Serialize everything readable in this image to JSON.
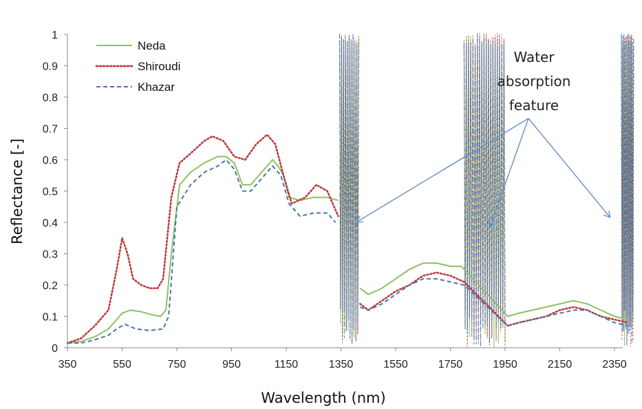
{
  "chart_data": {
    "type": "line",
    "title": "",
    "xlabel": "Wavelength (nm)",
    "ylabel": "Reflectance [-]",
    "xlim": [
      350,
      2500
    ],
    "ylim": [
      0,
      1
    ],
    "xticks": [
      "350",
      "550",
      "750",
      "950",
      "1150",
      "1350",
      "1550",
      "1750",
      "1950",
      "2150",
      "2350"
    ],
    "yticks": [
      "0",
      "0.1",
      "0.2",
      "0.3",
      "0.4",
      "0.5",
      "0.6",
      "0.7",
      "0.8",
      "0.9",
      "1"
    ],
    "grid": false,
    "legend_position": "top-left",
    "noise_bands_nm": [
      [
        1345,
        1415
      ],
      [
        1800,
        1950
      ],
      [
        2420,
        2500
      ]
    ],
    "annotation": {
      "lines": [
        "Water",
        "absorption",
        "feature"
      ],
      "points_to_nm": [
        1400,
        1950,
        2480
      ]
    },
    "series": [
      {
        "name": "Neda",
        "color": "#8dc063",
        "style": "solid",
        "points": [
          [
            350,
            0.015
          ],
          [
            400,
            0.02
          ],
          [
            450,
            0.035
          ],
          [
            500,
            0.06
          ],
          [
            530,
            0.09
          ],
          [
            550,
            0.11
          ],
          [
            580,
            0.12
          ],
          [
            620,
            0.115
          ],
          [
            660,
            0.105
          ],
          [
            690,
            0.1
          ],
          [
            710,
            0.12
          ],
          [
            730,
            0.3
          ],
          [
            760,
            0.52
          ],
          [
            800,
            0.56
          ],
          [
            850,
            0.59
          ],
          [
            900,
            0.61
          ],
          [
            930,
            0.61
          ],
          [
            960,
            0.59
          ],
          [
            990,
            0.52
          ],
          [
            1020,
            0.52
          ],
          [
            1060,
            0.56
          ],
          [
            1100,
            0.6
          ],
          [
            1120,
            0.58
          ],
          [
            1140,
            0.55
          ],
          [
            1160,
            0.48
          ],
          [
            1200,
            0.47
          ],
          [
            1250,
            0.48
          ],
          [
            1300,
            0.48
          ],
          [
            1340,
            0.47
          ],
          [
            1360,
            0.4
          ],
          [
            1420,
            0.19
          ],
          [
            1450,
            0.17
          ],
          [
            1500,
            0.19
          ],
          [
            1550,
            0.22
          ],
          [
            1600,
            0.25
          ],
          [
            1650,
            0.27
          ],
          [
            1700,
            0.27
          ],
          [
            1750,
            0.26
          ],
          [
            1790,
            0.26
          ],
          [
            1960,
            0.1
          ],
          [
            2000,
            0.11
          ],
          [
            2050,
            0.12
          ],
          [
            2100,
            0.13
          ],
          [
            2150,
            0.14
          ],
          [
            2200,
            0.15
          ],
          [
            2250,
            0.14
          ],
          [
            2300,
            0.12
          ],
          [
            2350,
            0.1
          ],
          [
            2400,
            0.09
          ],
          [
            2430,
            0.08
          ]
        ]
      },
      {
        "name": "Shiroudi",
        "color": "#c0393b",
        "style": "dotted",
        "points": [
          [
            350,
            0.015
          ],
          [
            400,
            0.03
          ],
          [
            450,
            0.07
          ],
          [
            500,
            0.12
          ],
          [
            530,
            0.25
          ],
          [
            550,
            0.35
          ],
          [
            570,
            0.3
          ],
          [
            590,
            0.22
          ],
          [
            620,
            0.2
          ],
          [
            650,
            0.19
          ],
          [
            680,
            0.19
          ],
          [
            700,
            0.22
          ],
          [
            730,
            0.48
          ],
          [
            760,
            0.59
          ],
          [
            800,
            0.62
          ],
          [
            850,
            0.66
          ],
          [
            880,
            0.675
          ],
          [
            920,
            0.66
          ],
          [
            960,
            0.61
          ],
          [
            1000,
            0.6
          ],
          [
            1040,
            0.65
          ],
          [
            1080,
            0.68
          ],
          [
            1110,
            0.65
          ],
          [
            1140,
            0.55
          ],
          [
            1170,
            0.46
          ],
          [
            1220,
            0.48
          ],
          [
            1260,
            0.52
          ],
          [
            1300,
            0.5
          ],
          [
            1340,
            0.42
          ],
          [
            1360,
            0.38
          ],
          [
            1420,
            0.14
          ],
          [
            1450,
            0.12
          ],
          [
            1500,
            0.15
          ],
          [
            1550,
            0.18
          ],
          [
            1600,
            0.2
          ],
          [
            1650,
            0.23
          ],
          [
            1700,
            0.24
          ],
          [
            1750,
            0.23
          ],
          [
            1800,
            0.21
          ],
          [
            1960,
            0.07
          ],
          [
            2000,
            0.08
          ],
          [
            2050,
            0.09
          ],
          [
            2100,
            0.1
          ],
          [
            2150,
            0.12
          ],
          [
            2200,
            0.13
          ],
          [
            2250,
            0.12
          ],
          [
            2300,
            0.1
          ],
          [
            2350,
            0.09
          ],
          [
            2400,
            0.08
          ],
          [
            2430,
            0.07
          ]
        ]
      },
      {
        "name": "Khazar",
        "color": "#4a73b0",
        "style": "dashed",
        "points": [
          [
            350,
            0.015
          ],
          [
            400,
            0.015
          ],
          [
            450,
            0.025
          ],
          [
            500,
            0.04
          ],
          [
            530,
            0.06
          ],
          [
            560,
            0.075
          ],
          [
            600,
            0.06
          ],
          [
            650,
            0.055
          ],
          [
            700,
            0.06
          ],
          [
            720,
            0.1
          ],
          [
            750,
            0.45
          ],
          [
            800,
            0.52
          ],
          [
            850,
            0.56
          ],
          [
            900,
            0.58
          ],
          [
            930,
            0.6
          ],
          [
            960,
            0.57
          ],
          [
            990,
            0.5
          ],
          [
            1020,
            0.5
          ],
          [
            1060,
            0.54
          ],
          [
            1100,
            0.58
          ],
          [
            1130,
            0.55
          ],
          [
            1160,
            0.46
          ],
          [
            1200,
            0.42
          ],
          [
            1250,
            0.43
          ],
          [
            1300,
            0.43
          ],
          [
            1330,
            0.4
          ],
          [
            1350,
            0.35
          ],
          [
            1420,
            0.13
          ],
          [
            1450,
            0.12
          ],
          [
            1500,
            0.14
          ],
          [
            1550,
            0.17
          ],
          [
            1600,
            0.2
          ],
          [
            1650,
            0.22
          ],
          [
            1700,
            0.22
          ],
          [
            1750,
            0.21
          ],
          [
            1800,
            0.2
          ],
          [
            1960,
            0.07
          ],
          [
            2000,
            0.08
          ],
          [
            2050,
            0.09
          ],
          [
            2100,
            0.1
          ],
          [
            2150,
            0.11
          ],
          [
            2200,
            0.12
          ],
          [
            2250,
            0.12
          ],
          [
            2300,
            0.1
          ],
          [
            2350,
            0.08
          ],
          [
            2400,
            0.07
          ],
          [
            2430,
            0.06
          ]
        ]
      }
    ]
  }
}
